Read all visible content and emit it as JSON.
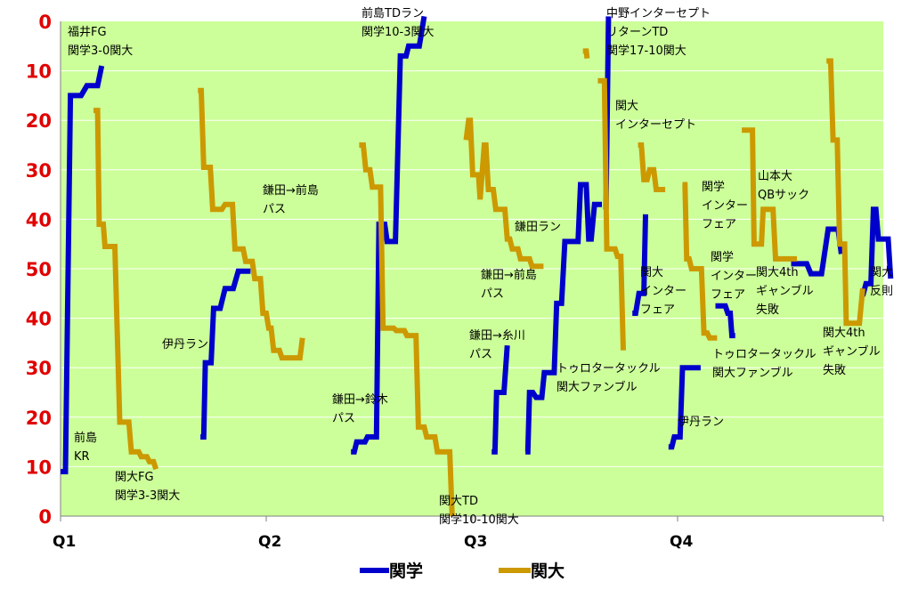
{
  "chart_data": {
    "type": "line",
    "y_tick_labels": [
      "0",
      "10",
      "20",
      "30",
      "40",
      "50",
      "40",
      "30",
      "20",
      "10",
      "0"
    ],
    "x_tick_labels": [
      "Q1",
      "Q2",
      "Q3",
      "Q4"
    ],
    "grid": true,
    "legend_position": "bottom",
    "colors": {
      "plot_bg": "#ccff99",
      "grid": "#ffffff",
      "axis": "#808080",
      "tick_label": "#e00000"
    },
    "series": [
      {
        "name": "関学",
        "color": "#0000cc",
        "segments": [
          [
            [
              0,
              91
            ],
            [
              0.6,
              91
            ],
            [
              1.2,
              15
            ],
            [
              2.5,
              15
            ],
            [
              3.2,
              13
            ],
            [
              4.5,
              13
            ],
            [
              5,
              9
            ]
          ],
          [
            [
              17,
              84
            ],
            [
              17.4,
              84
            ],
            [
              17.6,
              69
            ],
            [
              18.3,
              69
            ],
            [
              18.6,
              58
            ],
            [
              19.4,
              58
            ],
            [
              20,
              54
            ],
            [
              21,
              54
            ],
            [
              21.6,
              50.5
            ],
            [
              23.1,
              50.5
            ]
          ],
          [
            [
              35.3,
              87
            ],
            [
              35.7,
              87
            ],
            [
              36,
              85
            ],
            [
              37,
              85
            ],
            [
              37.3,
              84
            ],
            [
              38.4,
              84
            ],
            [
              38.7,
              41
            ],
            [
              39.4,
              41
            ],
            [
              39.7,
              44.5
            ],
            [
              40.7,
              44.5
            ],
            [
              41.3,
              7
            ],
            [
              42,
              7
            ],
            [
              42.3,
              5
            ],
            [
              43.6,
              5
            ],
            [
              44.2,
              -5
            ]
          ],
          [
            [
              52.4,
              87
            ],
            [
              52.8,
              87
            ],
            [
              53,
              75
            ],
            [
              53.9,
              75
            ],
            [
              54.3,
              65.5
            ]
          ],
          [
            [
              56.5,
              87
            ],
            [
              56.8,
              87
            ],
            [
              57,
              75
            ],
            [
              57.4,
              75
            ],
            [
              57.8,
              76
            ],
            [
              58.5,
              76
            ],
            [
              58.8,
              71
            ],
            [
              60,
              71
            ],
            [
              60.3,
              57
            ],
            [
              60.9,
              57
            ],
            [
              61.3,
              44.5
            ],
            [
              62.9,
              44.5
            ],
            [
              63.2,
              33
            ],
            [
              63.9,
              33
            ],
            [
              64.2,
              44
            ],
            [
              64.5,
              44
            ],
            [
              64.9,
              37
            ],
            [
              65.8,
              37
            ]
          ],
          [
            [
              66.3,
              38
            ],
            [
              66.6,
              -5
            ]
          ],
          [
            [
              69.5,
              59
            ],
            [
              69.9,
              59
            ],
            [
              70.3,
              55
            ],
            [
              70.9,
              55
            ],
            [
              71.1,
              39
            ]
          ],
          [
            [
              73.9,
              86
            ],
            [
              74.3,
              86
            ],
            [
              74.6,
              84
            ],
            [
              75.3,
              84
            ],
            [
              75.6,
              70
            ],
            [
              77.8,
              70
            ]
          ],
          [
            [
              79.6,
              57.5
            ],
            [
              80.8,
              57.5
            ],
            [
              81.1,
              59
            ],
            [
              81.4,
              59
            ],
            [
              81.6,
              63.5
            ],
            [
              82,
              63.5
            ]
          ],
          [
            [
              88.8,
              49
            ],
            [
              90.7,
              49
            ],
            [
              91.2,
              51
            ],
            [
              92.5,
              51
            ],
            [
              93.3,
              42
            ],
            [
              94.5,
              42
            ],
            [
              94.9,
              47
            ]
          ],
          [
            [
              97.5,
              55.5
            ],
            [
              97.9,
              53
            ],
            [
              98.5,
              53
            ],
            [
              98.8,
              38
            ],
            [
              99.1,
              38
            ],
            [
              99.4,
              44
            ],
            [
              100.6,
              44
            ],
            [
              100.9,
              52
            ]
          ]
        ]
      },
      {
        "name": "関大",
        "color": "#cc9900",
        "segments": [
          [
            [
              4,
              18
            ],
            [
              4.5,
              18
            ],
            [
              4.7,
              41
            ],
            [
              5.2,
              41
            ],
            [
              5.4,
              45.5
            ],
            [
              6.6,
              45.5
            ],
            [
              7.2,
              81
            ],
            [
              8.3,
              81
            ],
            [
              8.6,
              87
            ],
            [
              9.5,
              87
            ],
            [
              9.8,
              88
            ],
            [
              10.5,
              88
            ],
            [
              10.8,
              89
            ],
            [
              11.3,
              89
            ],
            [
              11.6,
              90.5
            ]
          ],
          [
            [
              16.7,
              14
            ],
            [
              17.1,
              14
            ],
            [
              17.4,
              29.5
            ],
            [
              18.2,
              29.5
            ],
            [
              18.5,
              38
            ],
            [
              19.6,
              38
            ],
            [
              20,
              37
            ],
            [
              20.9,
              37
            ],
            [
              21.2,
              46
            ],
            [
              22.2,
              46
            ],
            [
              22.5,
              48.5
            ],
            [
              23.3,
              48.5
            ],
            [
              23.6,
              52
            ],
            [
              24.3,
              52
            ],
            [
              24.6,
              59
            ],
            [
              25,
              59
            ],
            [
              25.3,
              62
            ],
            [
              25.6,
              62
            ],
            [
              25.9,
              66.5
            ],
            [
              26.6,
              66.5
            ],
            [
              26.9,
              68
            ],
            [
              29.1,
              68
            ],
            [
              29.4,
              64
            ]
          ],
          [
            [
              36.3,
              25
            ],
            [
              36.8,
              25
            ],
            [
              37.1,
              30
            ],
            [
              37.6,
              30
            ],
            [
              37.9,
              33.5
            ],
            [
              38.9,
              33.5
            ],
            [
              39.2,
              62
            ],
            [
              40.5,
              62
            ],
            [
              40.8,
              62.5
            ],
            [
              41.8,
              62.5
            ],
            [
              42.1,
              63.5
            ],
            [
              43.2,
              63.5
            ],
            [
              43.5,
              82
            ],
            [
              44.2,
              82
            ],
            [
              44.5,
              84
            ],
            [
              45.5,
              84
            ],
            [
              45.8,
              87
            ],
            [
              47.3,
              87
            ],
            [
              47.6,
              100
            ]
          ],
          [
            [
              49.3,
              24
            ],
            [
              49.6,
              20
            ],
            [
              49.8,
              20
            ],
            [
              50.1,
              31
            ],
            [
              50.8,
              31
            ],
            [
              51,
              36
            ],
            [
              51.5,
              25
            ],
            [
              51.7,
              25
            ],
            [
              52,
              34
            ],
            [
              52.6,
              34
            ],
            [
              52.9,
              38
            ],
            [
              54,
              38
            ],
            [
              54.3,
              44
            ],
            [
              54.6,
              44
            ],
            [
              54.9,
              46
            ],
            [
              55.6,
              46
            ],
            [
              55.9,
              48
            ],
            [
              57,
              48
            ],
            [
              57.3,
              49.5
            ],
            [
              58.7,
              49.5
            ]
          ],
          [
            [
              63.5,
              6
            ],
            [
              63.9,
              6
            ],
            [
              64,
              7.5
            ]
          ],
          [
            [
              65.3,
              12
            ],
            [
              66.1,
              12
            ],
            [
              66.4,
              46
            ],
            [
              67.4,
              46
            ],
            [
              67.7,
              47.5
            ],
            [
              68.1,
              47.5
            ],
            [
              68.4,
              66.5
            ]
          ],
          [
            [
              70.2,
              25
            ],
            [
              70.6,
              25
            ],
            [
              70.9,
              32
            ],
            [
              71.3,
              32
            ],
            [
              71.6,
              30
            ],
            [
              72.1,
              30
            ],
            [
              72.4,
              34
            ],
            [
              73.5,
              34
            ]
          ],
          [
            [
              75.6,
              33
            ],
            [
              75.9,
              33
            ],
            [
              76.1,
              48
            ],
            [
              76.4,
              48
            ],
            [
              76.7,
              50
            ],
            [
              77.9,
              50
            ],
            [
              78.2,
              63
            ],
            [
              78.6,
              63
            ],
            [
              78.9,
              64
            ],
            [
              79.8,
              64
            ]
          ],
          [
            [
              82.8,
              22
            ],
            [
              84.1,
              22
            ],
            [
              84.3,
              45
            ],
            [
              85.2,
              45
            ],
            [
              85.4,
              38
            ],
            [
              86.6,
              38
            ],
            [
              86.9,
              48
            ],
            [
              89.5,
              48
            ]
          ],
          [
            [
              93.1,
              8
            ],
            [
              93.6,
              8
            ],
            [
              93.9,
              24
            ],
            [
              94.4,
              24
            ],
            [
              94.7,
              45
            ],
            [
              95.3,
              45
            ],
            [
              95.5,
              61
            ],
            [
              97.1,
              61
            ],
            [
              97.5,
              54
            ]
          ]
        ]
      }
    ],
    "annotations": [
      {
        "id": "fukui-fg",
        "lines": [
          "福井FG",
          "関学3-0関大"
        ]
      },
      {
        "id": "maejima-kr",
        "lines": [
          "前島",
          "KR"
        ]
      },
      {
        "id": "kandai-fg",
        "lines": [
          "関大FG",
          "関学3-3関大"
        ]
      },
      {
        "id": "itami-run-1",
        "lines": [
          "伊丹ラン"
        ]
      },
      {
        "id": "kamata-maejima-pass-1",
        "lines": [
          "鎌田→前島",
          "パス"
        ]
      },
      {
        "id": "maejima-td-run",
        "lines": [
          "前島TDラン",
          "関学10-3関大"
        ]
      },
      {
        "id": "kamata-suzuki-pass",
        "lines": [
          "鎌田→鈴木",
          "パス"
        ]
      },
      {
        "id": "kandai-td",
        "lines": [
          "関大TD",
          "関学10-10関大"
        ]
      },
      {
        "id": "kamata-run",
        "lines": [
          "鎌田ラン"
        ]
      },
      {
        "id": "kamata-maejima-pass-2",
        "lines": [
          "鎌田→前島",
          "パス"
        ]
      },
      {
        "id": "kamata-itokawa-pass",
        "lines": [
          "鎌田→糸川",
          "パス"
        ]
      },
      {
        "id": "tourou-tackle-1",
        "lines": [
          "トゥロタータックル",
          "関大ファンブル"
        ]
      },
      {
        "id": "nakano-int-td",
        "lines": [
          "中野インターセプト",
          "リターンTD",
          "関学17-10関大"
        ]
      },
      {
        "id": "kandai-int",
        "lines": [
          "関大",
          "インターセプト"
        ]
      },
      {
        "id": "kandai-inter-fair",
        "lines": [
          "関大",
          "インター",
          "フェア"
        ]
      },
      {
        "id": "itami-run-2",
        "lines": [
          "伊丹ラン"
        ]
      },
      {
        "id": "kangaku-inter-fair-1",
        "lines": [
          "関学",
          "インター",
          "フェア"
        ]
      },
      {
        "id": "kangaku-inter-fair-2",
        "lines": [
          "関学",
          "インター",
          "フェア"
        ]
      },
      {
        "id": "tourou-tackle-2",
        "lines": [
          "トゥロタータックル",
          "関大ファンブル"
        ]
      },
      {
        "id": "yamamoto-qb-sack",
        "lines": [
          "山本大",
          "QBサック"
        ]
      },
      {
        "id": "kandai-4th-gamble-1",
        "lines": [
          "関大4th",
          "ギャンブル",
          "失敗"
        ]
      },
      {
        "id": "kandai-4th-gamble-2",
        "lines": [
          "関大4th",
          "ギャンブル",
          "失敗"
        ]
      },
      {
        "id": "kandai-penalty",
        "lines": [
          "関大",
          "反則"
        ]
      }
    ]
  }
}
